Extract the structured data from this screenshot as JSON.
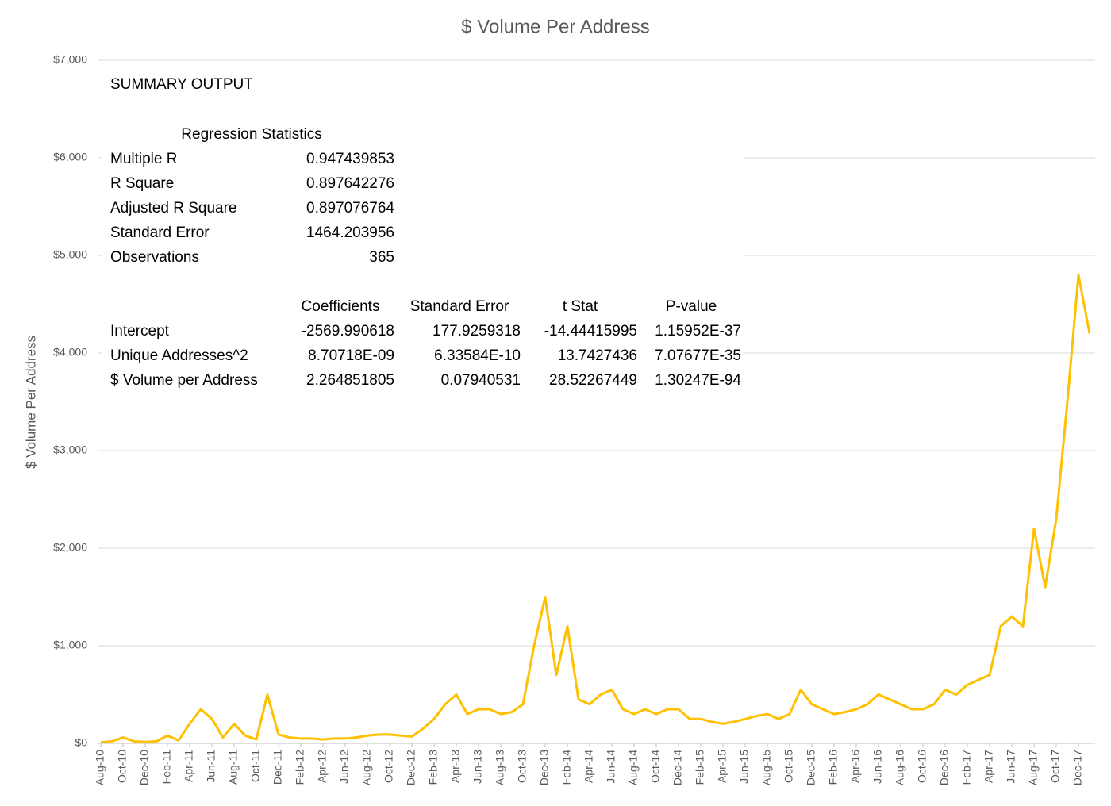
{
  "chart_data": {
    "type": "line",
    "title": "$ Volume Per Address",
    "y_label": "$ Volume Per Address",
    "color": "#ffc000",
    "grid": true,
    "x": [
      "2010-08",
      "2010-09",
      "2010-10",
      "2010-11",
      "2010-12",
      "2011-01",
      "2011-02",
      "2011-03",
      "2011-04",
      "2011-05",
      "2011-06",
      "2011-07",
      "2011-08",
      "2011-09",
      "2011-10",
      "2011-11",
      "2011-12",
      "2012-01",
      "2012-02",
      "2012-03",
      "2012-04",
      "2012-05",
      "2012-06",
      "2012-07",
      "2012-08",
      "2012-09",
      "2012-10",
      "2012-11",
      "2012-12",
      "2013-01",
      "2013-02",
      "2013-03",
      "2013-04",
      "2013-05",
      "2013-06",
      "2013-07",
      "2013-08",
      "2013-09",
      "2013-10",
      "2013-11",
      "2013-12",
      "2014-01",
      "2014-02",
      "2014-03",
      "2014-04",
      "2014-05",
      "2014-06",
      "2014-07",
      "2014-08",
      "2014-09",
      "2014-10",
      "2014-11",
      "2014-12",
      "2015-01",
      "2015-02",
      "2015-03",
      "2015-04",
      "2015-05",
      "2015-06",
      "2015-07",
      "2015-08",
      "2015-09",
      "2015-10",
      "2015-11",
      "2015-12",
      "2016-01",
      "2016-02",
      "2016-03",
      "2016-04",
      "2016-05",
      "2016-06",
      "2016-07",
      "2016-08",
      "2016-09",
      "2016-10",
      "2016-11",
      "2016-12",
      "2017-01",
      "2017-02",
      "2017-03",
      "2017-04",
      "2017-05",
      "2017-06",
      "2017-07",
      "2017-08",
      "2017-09",
      "2017-10",
      "2017-11",
      "2017-12",
      "2018-01"
    ],
    "values": [
      10,
      20,
      60,
      20,
      15,
      20,
      80,
      30,
      200,
      350,
      250,
      60,
      200,
      80,
      40,
      500,
      90,
      60,
      50,
      50,
      40,
      50,
      50,
      60,
      80,
      90,
      90,
      80,
      70,
      150,
      250,
      400,
      500,
      300,
      350,
      350,
      300,
      320,
      400,
      1000,
      1500,
      700,
      1200,
      450,
      400,
      500,
      550,
      350,
      300,
      350,
      300,
      350,
      350,
      250,
      250,
      220,
      200,
      220,
      250,
      280,
      300,
      250,
      300,
      550,
      400,
      350,
      300,
      320,
      350,
      400,
      500,
      450,
      400,
      350,
      350,
      400,
      550,
      500,
      600,
      650,
      700,
      1200,
      1300,
      1200,
      2200,
      1600,
      2300,
      3500,
      4800,
      4200
    ],
    "xlim": [
      "2010-08",
      "2018-01"
    ],
    "xticks": [
      {
        "value": "2010-08",
        "label": "Aug-10"
      },
      {
        "value": "2010-10",
        "label": "Oct-10"
      },
      {
        "value": "2010-12",
        "label": "Dec-10"
      },
      {
        "value": "2011-02",
        "label": "Feb-11"
      },
      {
        "value": "2011-04",
        "label": "Apr-11"
      },
      {
        "value": "2011-06",
        "label": "Jun-11"
      },
      {
        "value": "2011-08",
        "label": "Aug-11"
      },
      {
        "value": "2011-10",
        "label": "Oct-11"
      },
      {
        "value": "2011-12",
        "label": "Dec-11"
      },
      {
        "value": "2012-02",
        "label": "Feb-12"
      },
      {
        "value": "2012-04",
        "label": "Apr-12"
      },
      {
        "value": "2012-06",
        "label": "Jun-12"
      },
      {
        "value": "2012-08",
        "label": "Aug-12"
      },
      {
        "value": "2012-10",
        "label": "Oct-12"
      },
      {
        "value": "2012-12",
        "label": "Dec-12"
      },
      {
        "value": "2013-02",
        "label": "Feb-13"
      },
      {
        "value": "2013-04",
        "label": "Apr-13"
      },
      {
        "value": "2013-06",
        "label": "Jun-13"
      },
      {
        "value": "2013-08",
        "label": "Aug-13"
      },
      {
        "value": "2013-10",
        "label": "Oct-13"
      },
      {
        "value": "2013-12",
        "label": "Dec-13"
      },
      {
        "value": "2014-02",
        "label": "Feb-14"
      },
      {
        "value": "2014-04",
        "label": "Apr-14"
      },
      {
        "value": "2014-06",
        "label": "Jun-14"
      },
      {
        "value": "2014-08",
        "label": "Aug-14"
      },
      {
        "value": "2014-10",
        "label": "Oct-14"
      },
      {
        "value": "2014-12",
        "label": "Dec-14"
      },
      {
        "value": "2015-02",
        "label": "Feb-15"
      },
      {
        "value": "2015-04",
        "label": "Apr-15"
      },
      {
        "value": "2015-06",
        "label": "Jun-15"
      },
      {
        "value": "2015-08",
        "label": "Aug-15"
      },
      {
        "value": "2015-10",
        "label": "Oct-15"
      },
      {
        "value": "2015-12",
        "label": "Dec-15"
      },
      {
        "value": "2016-02",
        "label": "Feb-16"
      },
      {
        "value": "2016-04",
        "label": "Apr-16"
      },
      {
        "value": "2016-06",
        "label": "Jun-16"
      },
      {
        "value": "2016-08",
        "label": "Aug-16"
      },
      {
        "value": "2016-10",
        "label": "Oct-16"
      },
      {
        "value": "2016-12",
        "label": "Dec-16"
      },
      {
        "value": "2017-02",
        "label": "Feb-17"
      },
      {
        "value": "2017-04",
        "label": "Apr-17"
      },
      {
        "value": "2017-06",
        "label": "Jun-17"
      },
      {
        "value": "2017-08",
        "label": "Aug-17"
      },
      {
        "value": "2017-10",
        "label": "Oct-17"
      },
      {
        "value": "2017-12",
        "label": "Dec-17"
      }
    ],
    "ylim": [
      0,
      7000
    ],
    "yticks": [
      {
        "value": 0,
        "label": "$0"
      },
      {
        "value": 1000,
        "label": "$1,000"
      },
      {
        "value": 2000,
        "label": "$2,000"
      },
      {
        "value": 3000,
        "label": "$3,000"
      },
      {
        "value": 4000,
        "label": "$4,000"
      },
      {
        "value": 5000,
        "label": "$5,000"
      },
      {
        "value": 6000,
        "label": "$6,000"
      },
      {
        "value": 7000,
        "label": "$7,000"
      }
    ]
  },
  "summary": {
    "title": "SUMMARY OUTPUT",
    "stats_header": "Regression Statistics",
    "stats": [
      [
        "Multiple R",
        "0.947439853"
      ],
      [
        "R Square",
        "0.897642276"
      ],
      [
        "Adjusted R Square",
        "0.897076764"
      ],
      [
        "Standard Error",
        "1464.203956"
      ],
      [
        "Observations",
        "365"
      ]
    ],
    "headers": [
      "Coefficients",
      "Standard Error",
      "t Stat",
      "P-value"
    ],
    "rows": [
      [
        "Intercept",
        "-2569.990618",
        "177.9259318",
        "-14.44415995",
        "1.15952E-37"
      ],
      [
        "Unique Addresses^2",
        "8.70718E-09",
        "6.33584E-10",
        "13.7427436",
        "7.07677E-35"
      ],
      [
        "$ Volume per Address",
        "2.264851805",
        "0.07940531",
        "28.52267449",
        "1.30247E-94"
      ]
    ]
  }
}
